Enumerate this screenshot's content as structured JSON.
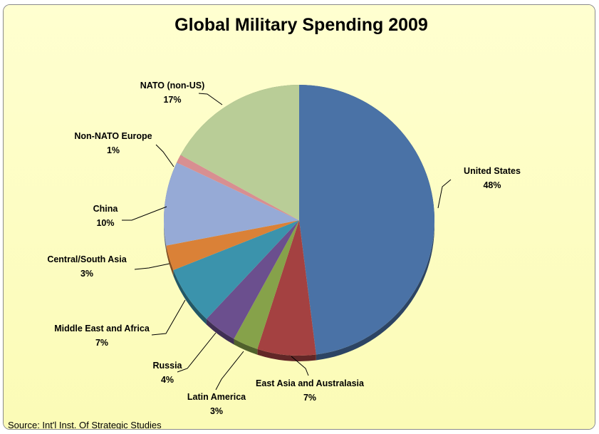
{
  "chart_data": {
    "type": "pie",
    "title": "Global Military Spending 2009",
    "source": "Source: Int'l Inst. Of Strategic Studies",
    "slices": [
      {
        "label": "United States",
        "value": 48,
        "value_label": "48%",
        "color": "#4a72a6"
      },
      {
        "label": "East Asia and Australasia",
        "value": 7,
        "value_label": "7%",
        "color": "#a44141"
      },
      {
        "label": "Latin America",
        "value": 3,
        "value_label": "3%",
        "color": "#86a24a"
      },
      {
        "label": "Russia",
        "value": 4,
        "value_label": "4%",
        "color": "#6b4f8e"
      },
      {
        "label": "Middle East and Africa",
        "value": 7,
        "value_label": "7%",
        "color": "#3b93ac"
      },
      {
        "label": "Central/South Asia",
        "value": 3,
        "value_label": "3%",
        "color": "#da8137"
      },
      {
        "label": "China",
        "value": 10,
        "value_label": "10%",
        "color": "#96aad6"
      },
      {
        "label": "Non-NATO Europe",
        "value": 1,
        "value_label": "1%",
        "color": "#d88f91"
      },
      {
        "label": "NATO (non-US)",
        "value": 17,
        "value_label": "17%",
        "color": "#b9cd97"
      }
    ],
    "background": "#ffffc8"
  }
}
